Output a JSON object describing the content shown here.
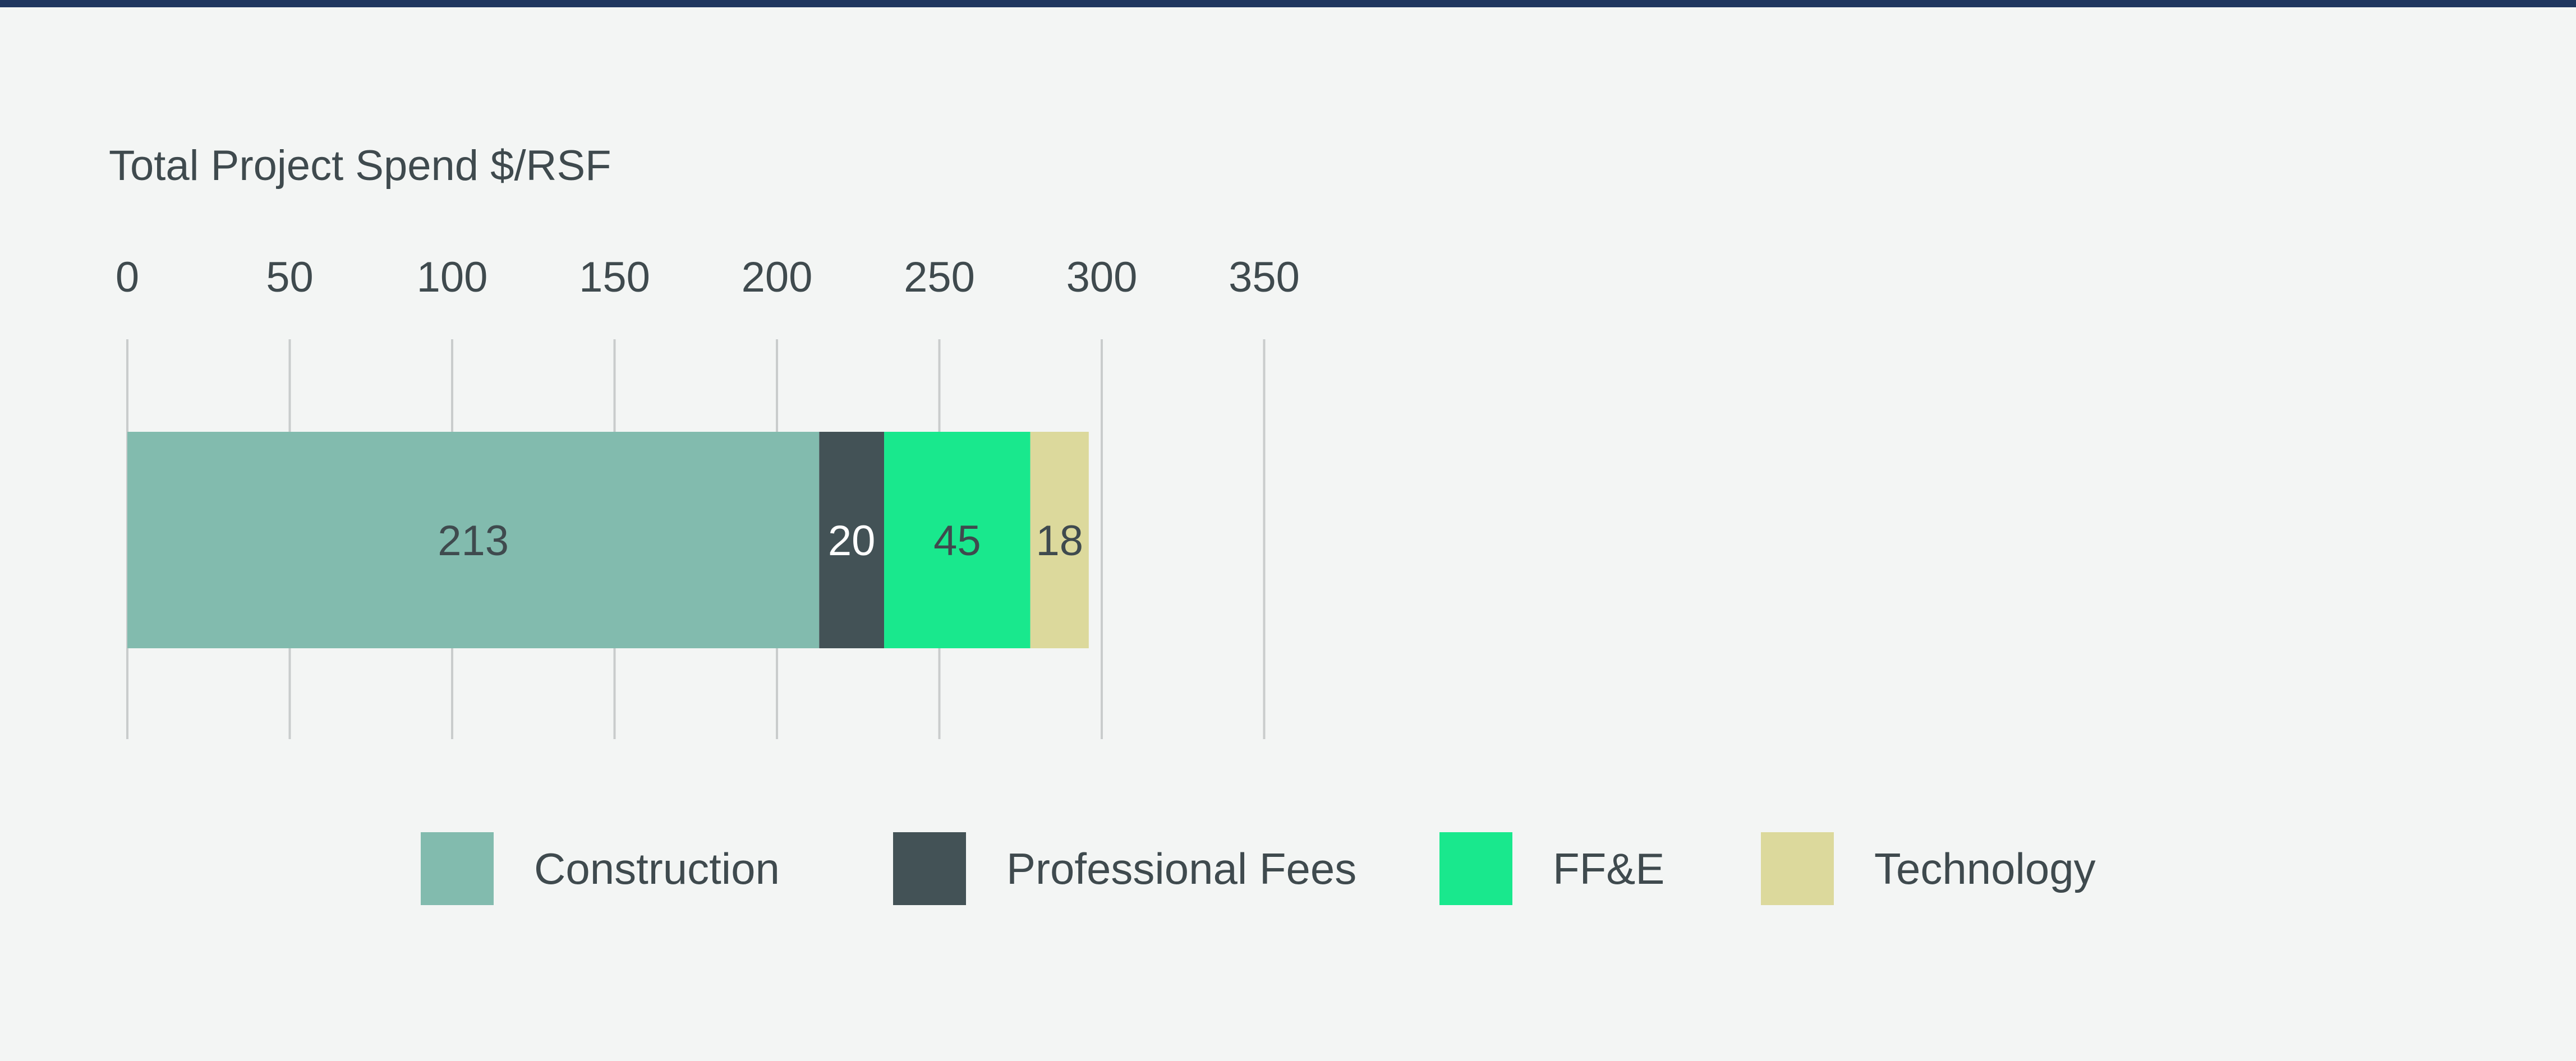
{
  "chart_data": {
    "type": "bar",
    "orientation": "horizontal",
    "stacked": true,
    "title": "Total Project Spend $/RSF",
    "xlim": [
      0,
      350
    ],
    "x_ticks": [
      "0",
      "50",
      "100",
      "150",
      "200",
      "250",
      "300",
      "350"
    ],
    "x_tick_values": [
      0,
      50,
      100,
      150,
      200,
      250,
      300,
      350
    ],
    "grid": true,
    "legend_position": "bottom",
    "series": [
      {
        "name": "Construction",
        "values": [
          213
        ],
        "label": "213",
        "color": "#82bbae",
        "label_color": "#3f4a4e"
      },
      {
        "name": "Professional Fees",
        "values": [
          20
        ],
        "label": "20",
        "color": "#435256",
        "label_color": "#ffffff"
      },
      {
        "name": "FF&E",
        "values": [
          45
        ],
        "label": "45",
        "color": "#19e88d",
        "label_color": "#3f4a4e"
      },
      {
        "name": "Technology",
        "values": [
          18
        ],
        "label": "18",
        "color": "#dcd99c",
        "label_color": "#3f4a4e"
      }
    ]
  },
  "colors": {
    "background": "#f3f5f4",
    "top_rule": "#20375f",
    "gridline": "#c9cccc",
    "text": "#3f4a4e"
  }
}
